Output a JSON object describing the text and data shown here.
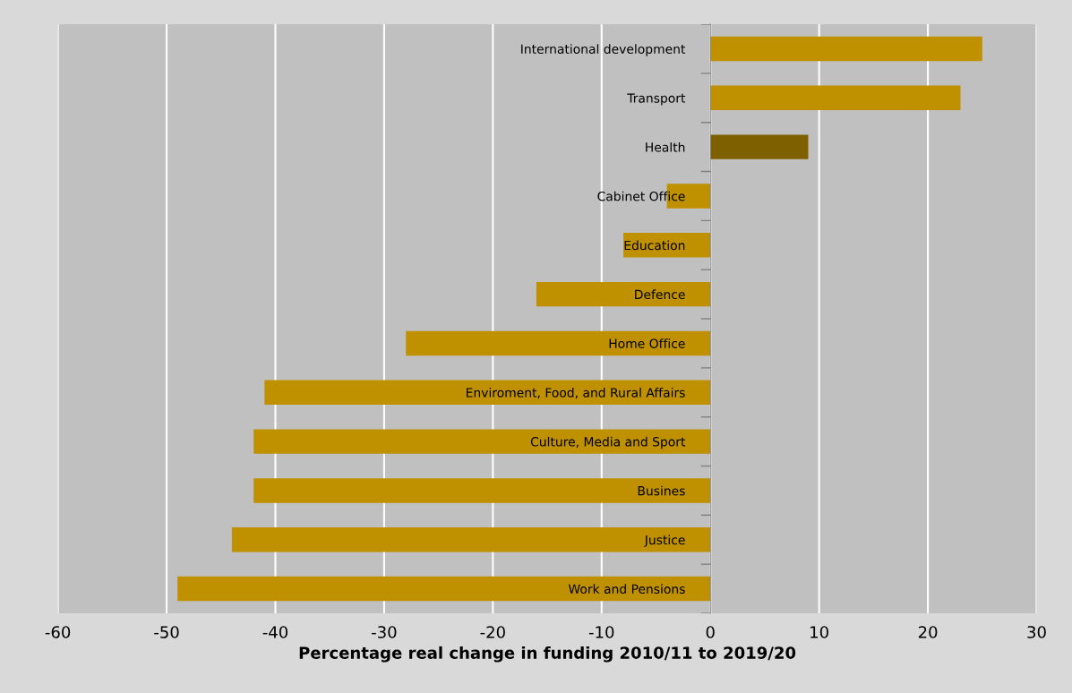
{
  "chart_data": {
    "type": "bar",
    "orientation": "horizontal",
    "xlabel": "Percentage real change in funding 2010/11 to 2019/20",
    "categories": [
      "International development",
      "Transport",
      "Health",
      "Cabinet Office",
      "Education",
      "Defence",
      "Home Office",
      "Enviroment, Food, and Rural Affairs",
      "Culture, Media and Sport",
      "Busines",
      "Justice",
      "Work and Pensions"
    ],
    "values": [
      25,
      23,
      9,
      -4,
      -8,
      -16,
      -28,
      -41,
      -42,
      -42,
      -44,
      -49
    ],
    "colors": [
      "#bf9000",
      "#bf9000",
      "#7f6000",
      "#bf9000",
      "#bf9000",
      "#bf9000",
      "#bf9000",
      "#bf9000",
      "#bf9000",
      "#bf9000",
      "#bf9000",
      "#bf9000"
    ],
    "xlim": [
      -60,
      30
    ],
    "xticks": [
      -60,
      -50,
      -40,
      -30,
      -20,
      -10,
      0,
      10,
      20,
      30
    ],
    "grid": "x",
    "legend": false
  }
}
